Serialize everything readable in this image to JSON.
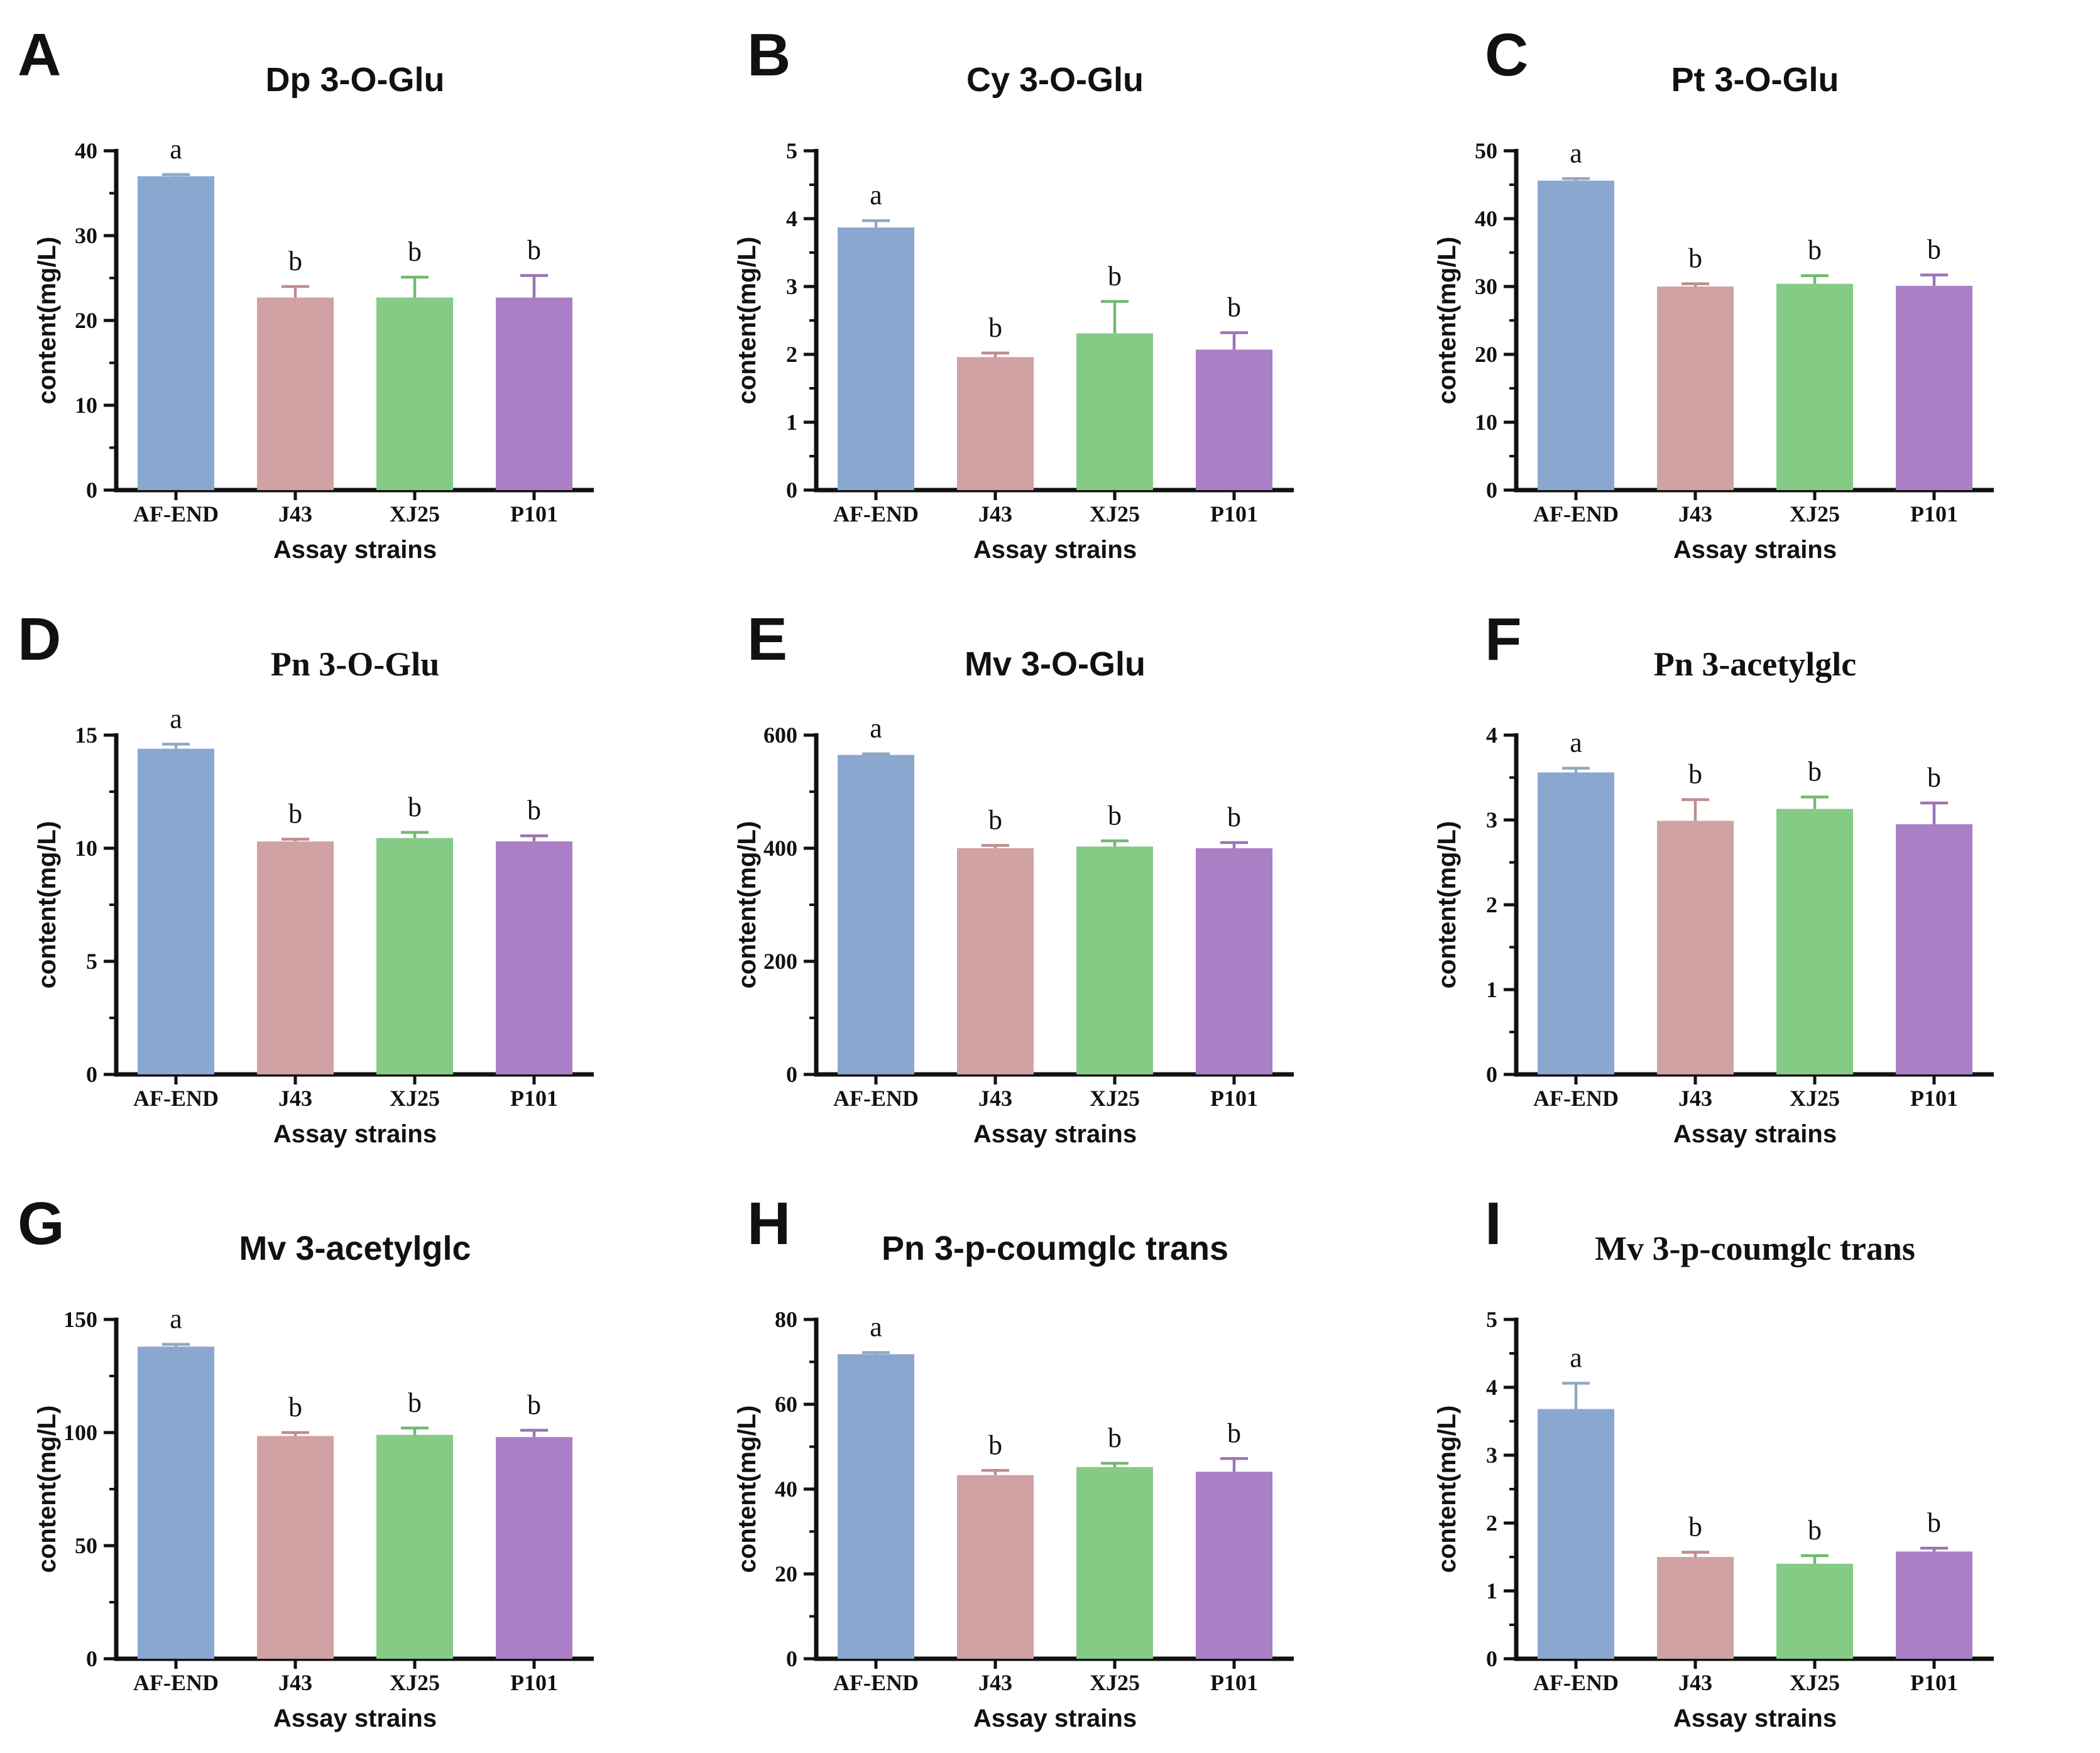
{
  "shared": {
    "categories": [
      "AF-END",
      "J43",
      "XJ25",
      "P101"
    ],
    "xlabel": "Assay strains",
    "ylabel": "content(mg/L)",
    "sig_letters": [
      "a",
      "b",
      "b",
      "b"
    ],
    "bar_colors": [
      "#8AA7D0",
      "#D0A2A3",
      "#85CB85",
      "#AB7FC5"
    ],
    "error_colors": [
      "#8FA8C2",
      "#BE8D8E",
      "#72B972",
      "#9B73B7"
    ],
    "axis_color": "#111111",
    "text_color": "#111111"
  },
  "chart_data": [
    {
      "type": "bar",
      "letter": "A",
      "title": "Dp 3-O-Glu",
      "title_serif": false,
      "xlabel": "Assay strains",
      "ylabel": "content(mg/L)",
      "categories": [
        "AF-END",
        "J43",
        "XJ25",
        "P101"
      ],
      "ylim": [
        0,
        40
      ],
      "yticks": [
        0,
        10,
        20,
        30,
        40
      ],
      "minor_step": 5,
      "values": [
        37.0,
        22.7,
        22.7,
        22.7
      ],
      "errors": [
        0.2,
        1.3,
        2.4,
        2.6
      ],
      "sig_letters": [
        "a",
        "b",
        "b",
        "b"
      ],
      "grid": false,
      "legend": "none"
    },
    {
      "type": "bar",
      "letter": "B",
      "title": "Cy 3-O-Glu",
      "title_serif": false,
      "xlabel": "Assay strains",
      "ylabel": "content(mg/L)",
      "categories": [
        "AF-END",
        "J43",
        "XJ25",
        "P101"
      ],
      "ylim": [
        0,
        5
      ],
      "yticks": [
        0,
        1,
        2,
        3,
        4,
        5
      ],
      "minor_step": 0.5,
      "values": [
        3.87,
        1.96,
        2.31,
        2.07
      ],
      "errors": [
        0.1,
        0.06,
        0.47,
        0.25
      ],
      "sig_letters": [
        "a",
        "b",
        "b",
        "b"
      ],
      "grid": false,
      "legend": "none"
    },
    {
      "type": "bar",
      "letter": "C",
      "title": "Pt 3-O-Glu",
      "title_serif": false,
      "xlabel": "Assay strains",
      "ylabel": "content(mg/L)",
      "categories": [
        "AF-END",
        "J43",
        "XJ25",
        "P101"
      ],
      "ylim": [
        0,
        50
      ],
      "yticks": [
        0,
        10,
        20,
        30,
        40,
        50
      ],
      "minor_step": 5,
      "values": [
        45.6,
        30.0,
        30.4,
        30.1
      ],
      "errors": [
        0.3,
        0.4,
        1.2,
        1.6
      ],
      "sig_letters": [
        "a",
        "b",
        "b",
        "b"
      ],
      "grid": false,
      "legend": "none"
    },
    {
      "type": "bar",
      "letter": "D",
      "title": "Pn 3-O-Glu",
      "title_serif": true,
      "xlabel": "Assay strains",
      "ylabel": "content(mg/L)",
      "categories": [
        "AF-END",
        "J43",
        "XJ25",
        "P101"
      ],
      "ylim": [
        0,
        15
      ],
      "yticks": [
        0,
        5,
        10,
        15
      ],
      "minor_step": 2.5,
      "values": [
        14.4,
        10.3,
        10.45,
        10.3
      ],
      "errors": [
        0.2,
        0.1,
        0.25,
        0.25
      ],
      "sig_letters": [
        "a",
        "b",
        "b",
        "b"
      ],
      "grid": false,
      "legend": "none"
    },
    {
      "type": "bar",
      "letter": "E",
      "title": "Mv 3-O-Glu",
      "title_serif": false,
      "xlabel": "Assay strains",
      "ylabel": "content(mg/L)",
      "categories": [
        "AF-END",
        "J43",
        "XJ25",
        "P101"
      ],
      "ylim": [
        0,
        600
      ],
      "yticks": [
        0,
        200,
        400,
        600
      ],
      "minor_step": 100,
      "values": [
        565,
        400,
        403,
        400
      ],
      "errors": [
        2,
        5,
        10,
        10
      ],
      "sig_letters": [
        "a",
        "b",
        "b",
        "b"
      ],
      "grid": false,
      "legend": "none"
    },
    {
      "type": "bar",
      "letter": "F",
      "title": "Pn 3-acetylglc",
      "title_serif": true,
      "xlabel": "Assay strains",
      "ylabel": "content(mg/L)",
      "categories": [
        "AF-END",
        "J43",
        "XJ25",
        "P101"
      ],
      "ylim": [
        0,
        4
      ],
      "yticks": [
        0,
        1,
        2,
        3,
        4
      ],
      "minor_step": 0.5,
      "values": [
        3.56,
        2.99,
        3.13,
        2.95
      ],
      "errors": [
        0.05,
        0.25,
        0.14,
        0.25
      ],
      "sig_letters": [
        "a",
        "b",
        "b",
        "b"
      ],
      "grid": false,
      "legend": "none"
    },
    {
      "type": "bar",
      "letter": "G",
      "title": "Mv 3-acetylglc",
      "title_serif": false,
      "xlabel": "Assay strains",
      "ylabel": "content(mg/L)",
      "categories": [
        "AF-END",
        "J43",
        "XJ25",
        "P101"
      ],
      "ylim": [
        0,
        150
      ],
      "yticks": [
        0,
        50,
        100,
        150
      ],
      "minor_step": 25,
      "values": [
        138,
        98.5,
        99,
        98
      ],
      "errors": [
        1,
        1.5,
        3,
        3
      ],
      "sig_letters": [
        "a",
        "b",
        "b",
        "b"
      ],
      "grid": false,
      "legend": "none"
    },
    {
      "type": "bar",
      "letter": "H",
      "title": "Pn 3-p-coumglc trans",
      "title_serif": false,
      "xlabel": "Assay strains",
      "ylabel": "content(mg/L)",
      "categories": [
        "AF-END",
        "J43",
        "XJ25",
        "P101"
      ],
      "ylim": [
        0,
        80
      ],
      "yticks": [
        0,
        20,
        40,
        60,
        80
      ],
      "minor_step": 10,
      "values": [
        71.8,
        43.3,
        45.2,
        44.1
      ],
      "errors": [
        0.4,
        1.1,
        0.9,
        3.1
      ],
      "sig_letters": [
        "a",
        "b",
        "b",
        "b"
      ],
      "grid": false,
      "legend": "none"
    },
    {
      "type": "bar",
      "letter": "I",
      "title": "Mv 3-p-coumglc trans",
      "title_serif": true,
      "xlabel": "Assay strains",
      "ylabel": "content(mg/L)",
      "categories": [
        "AF-END",
        "J43",
        "XJ25",
        "P101"
      ],
      "ylim": [
        0,
        5
      ],
      "yticks": [
        0,
        1,
        2,
        3,
        4,
        5
      ],
      "minor_step": 0.5,
      "values": [
        3.68,
        1.5,
        1.4,
        1.58
      ],
      "errors": [
        0.38,
        0.07,
        0.12,
        0.05
      ],
      "sig_letters": [
        "a",
        "b",
        "b",
        "b"
      ],
      "grid": false,
      "legend": "none"
    }
  ]
}
